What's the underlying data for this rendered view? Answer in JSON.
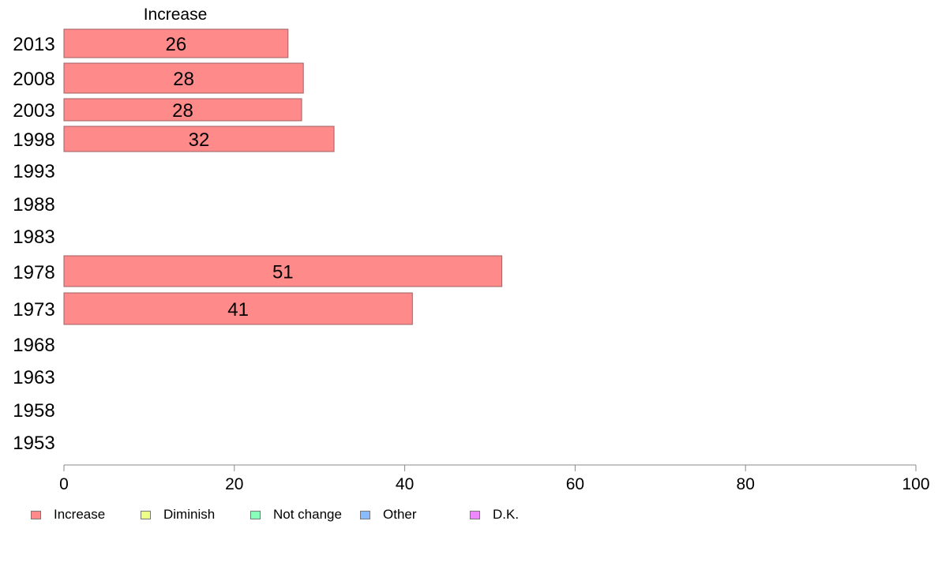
{
  "chart_data": {
    "type": "bar",
    "orientation": "horizontal",
    "column_header": "Increase",
    "categories": [
      "2013",
      "2008",
      "2003",
      "1998",
      "1993",
      "1988",
      "1983",
      "1978",
      "1973",
      "1968",
      "1963",
      "1958",
      "1953"
    ],
    "series": [
      {
        "name": "Increase",
        "values": [
          26,
          28,
          28,
          32,
          null,
          null,
          null,
          51,
          41,
          null,
          null,
          null,
          null
        ]
      }
    ],
    "data_labels": [
      "26",
      "28",
      "28",
      "32",
      "",
      "",
      "",
      "51",
      "41",
      "",
      "",
      "",
      ""
    ],
    "xlim": [
      0,
      100
    ],
    "x_ticks": [
      0,
      20,
      40,
      60,
      80,
      100
    ],
    "bar_values": [
      26.3,
      28.1,
      27.9,
      31.7,
      null,
      null,
      null,
      51.4,
      40.9,
      null,
      null,
      null,
      null
    ],
    "legend": [
      "Increase",
      "Diminish",
      "Not change",
      "Other",
      "D.K."
    ],
    "legend_colors": [
      "#ff8a8a",
      "#eeff88",
      "#88ffbb",
      "#88bbff",
      "#ee88ff"
    ],
    "legend_position": "bottom-left",
    "grid": false,
    "bar_color": "#ff8a8a",
    "bar_border_color": "#a06060"
  }
}
